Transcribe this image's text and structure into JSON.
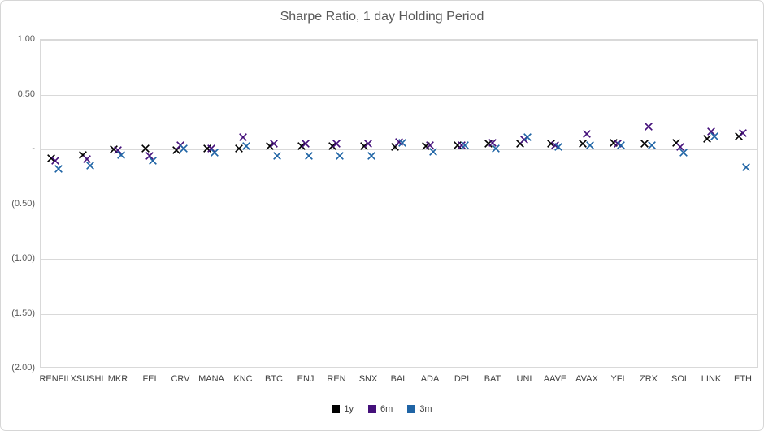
{
  "chart_data": {
    "type": "scatter",
    "marker": "x",
    "title": "Sharpe Ratio, 1 day Holding Period",
    "categories": [
      "RENFIL",
      "XSUSHI",
      "MKR",
      "FEI",
      "CRV",
      "MANA",
      "KNC",
      "BTC",
      "ENJ",
      "REN",
      "SNX",
      "BAL",
      "ADA",
      "DPI",
      "BAT",
      "UNI",
      "AAVE",
      "AVAX",
      "YFI",
      "ZRX",
      "SOL",
      "LINK",
      "ETH"
    ],
    "series": [
      {
        "name": "1y",
        "color": "#000000",
        "values": [
          -0.08,
          -0.05,
          0.0,
          0.01,
          -0.01,
          0.01,
          0.01,
          0.03,
          0.03,
          0.03,
          0.03,
          0.02,
          0.03,
          0.04,
          0.05,
          0.05,
          0.05,
          0.05,
          0.06,
          0.05,
          0.06,
          0.1,
          0.12
        ]
      },
      {
        "name": "6m",
        "color": "#44107A",
        "values": [
          -0.1,
          -0.09,
          -0.01,
          -0.06,
          0.04,
          0.01,
          0.11,
          0.05,
          0.05,
          0.05,
          0.05,
          0.07,
          0.04,
          0.04,
          0.06,
          0.09,
          0.04,
          0.14,
          0.05,
          0.21,
          0.02,
          0.16,
          0.15
        ]
      },
      {
        "name": "3m",
        "color": "#1F64A5",
        "values": [
          -0.18,
          -0.15,
          -0.05,
          -0.1,
          0.01,
          -0.03,
          0.03,
          -0.06,
          -0.06,
          -0.06,
          -0.06,
          0.06,
          -0.02,
          0.04,
          0.01,
          0.11,
          0.02,
          0.04,
          0.04,
          0.04,
          -0.03,
          0.12,
          -0.16
        ]
      }
    ],
    "ylim": [
      -2.0,
      1.0
    ],
    "yticks": [
      {
        "value": 1.0,
        "label": "1.00"
      },
      {
        "value": 0.5,
        "label": "0.50"
      },
      {
        "value": 0.0,
        "label": "-"
      },
      {
        "value": -0.5,
        "label": "(0.50)"
      },
      {
        "value": -1.0,
        "label": "(1.00)"
      },
      {
        "value": -1.5,
        "label": "(1.50)"
      },
      {
        "value": -2.0,
        "label": "(2.00)"
      }
    ],
    "grid": true,
    "legend_position": "bottom",
    "grid_color": "#d9d9d9",
    "tick_text_color": "#595959",
    "category_text_color": "#404040",
    "title_color": "#595959"
  }
}
